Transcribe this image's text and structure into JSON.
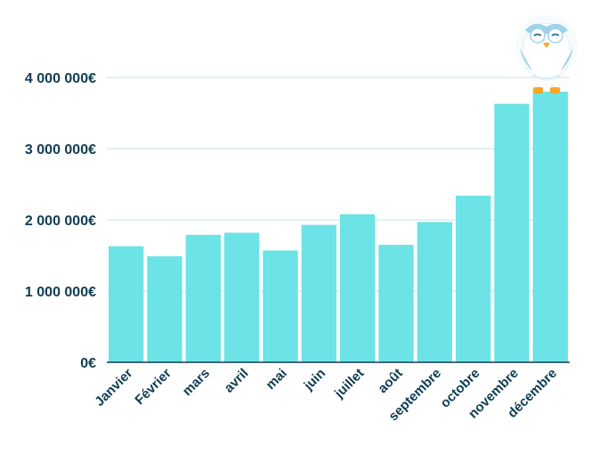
{
  "chart_data": {
    "type": "bar",
    "categories": [
      "Janvier",
      "Février",
      "mars",
      "avril",
      "mai",
      "juin",
      "juillet",
      "août",
      "septembre",
      "octobre",
      "novembre",
      "décembre"
    ],
    "values": [
      1630000,
      1490000,
      1790000,
      1820000,
      1570000,
      1930000,
      2080000,
      1650000,
      1970000,
      2340000,
      3630000,
      3800000
    ],
    "ylim": [
      0,
      4000000
    ],
    "yticks": [
      0,
      1000000,
      2000000,
      3000000,
      4000000
    ],
    "ytick_labels": [
      "0€",
      "1 000 000€",
      "2 000 000€",
      "3 000 000€",
      "4 000 000€"
    ],
    "grid": true,
    "bar_color": "#6ce3e6",
    "title": "",
    "xlabel": "",
    "ylabel": ""
  },
  "mascot": {
    "icon": "owl-mascot-icon"
  }
}
